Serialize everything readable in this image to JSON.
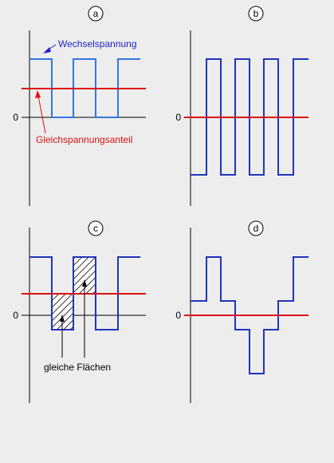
{
  "panels": {
    "a": {
      "letter": "a",
      "zero_label": "0",
      "label_ac": "Wechselspannung",
      "label_dc": "Gleichspannungsanteil"
    },
    "b": {
      "letter": "b",
      "zero_label": "0"
    },
    "c": {
      "letter": "c",
      "zero_label": "0",
      "label_equal": "gleiche Flächen"
    },
    "d": {
      "letter": "d",
      "zero_label": "0"
    }
  },
  "colors": {
    "background": "#ededed",
    "waveform_a": "#3377dd",
    "waveform": "#2233bb",
    "dc_line": "#dd1111",
    "label_ac": "#2222cc",
    "label_dc": "#dd1111",
    "axis": "#000000"
  }
}
